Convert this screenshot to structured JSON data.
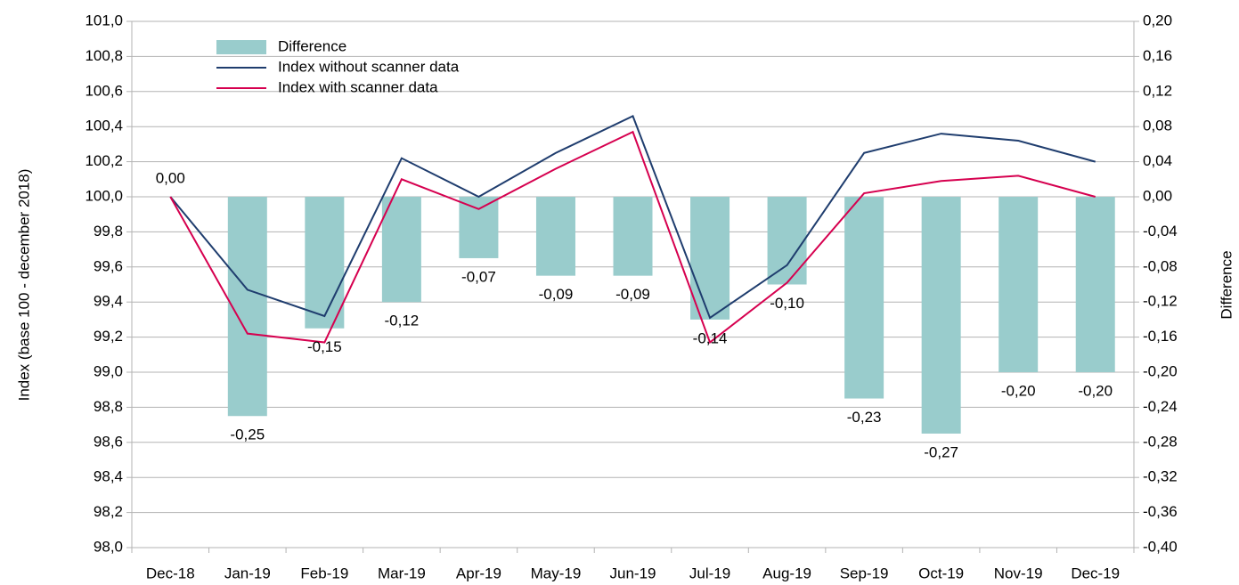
{
  "chart_data": {
    "type": "bar_line",
    "categories": [
      "Dec-18",
      "Jan-19",
      "Feb-19",
      "Mar-19",
      "Apr-19",
      "May-19",
      "Jun-19",
      "Jul-19",
      "Aug-19",
      "Sep-19",
      "Oct-19",
      "Nov-19",
      "Dec-19"
    ],
    "ylabel": "Index (base 100 - december 2018)",
    "y2label": "Difference",
    "ylim": [
      98.0,
      101.0
    ],
    "yticks": [
      {
        "value": 98.0,
        "label": "98,0"
      },
      {
        "value": 98.2,
        "label": "98,2"
      },
      {
        "value": 98.4,
        "label": "98,4"
      },
      {
        "value": 98.6,
        "label": "98,6"
      },
      {
        "value": 98.8,
        "label": "98,8"
      },
      {
        "value": 99.0,
        "label": "99,0"
      },
      {
        "value": 99.2,
        "label": "99,2"
      },
      {
        "value": 99.4,
        "label": "99,4"
      },
      {
        "value": 99.6,
        "label": "99,6"
      },
      {
        "value": 99.8,
        "label": "99,8"
      },
      {
        "value": 100.0,
        "label": "100,0"
      },
      {
        "value": 100.2,
        "label": "100,2"
      },
      {
        "value": 100.4,
        "label": "100,4"
      },
      {
        "value": 100.6,
        "label": "100,6"
      },
      {
        "value": 100.8,
        "label": "100,8"
      },
      {
        "value": 101.0,
        "label": "101,0"
      }
    ],
    "y2lim": [
      -0.4,
      0.2
    ],
    "y2ticks": [
      {
        "value": -0.4,
        "label": "-0,40"
      },
      {
        "value": -0.36,
        "label": "-0,36"
      },
      {
        "value": -0.32,
        "label": "-0,32"
      },
      {
        "value": -0.28,
        "label": "-0,28"
      },
      {
        "value": -0.24,
        "label": "-0,24"
      },
      {
        "value": -0.2,
        "label": "-0,20"
      },
      {
        "value": -0.16,
        "label": "-0,16"
      },
      {
        "value": -0.12,
        "label": "-0,12"
      },
      {
        "value": -0.08,
        "label": "-0,08"
      },
      {
        "value": -0.04,
        "label": "-0,04"
      },
      {
        "value": 0,
        "label": "0,00"
      },
      {
        "value": 0.04,
        "label": "0,04"
      },
      {
        "value": 0.08,
        "label": "0,08"
      },
      {
        "value": 0.12,
        "label": "0,12"
      },
      {
        "value": 0.16,
        "label": "0,16"
      },
      {
        "value": 0.2,
        "label": "0,20"
      }
    ],
    "grid": true,
    "legend": "top-left",
    "series": [
      {
        "name": "Difference",
        "type": "bar",
        "axis": "y2",
        "color": "#99cccc",
        "values": [
          0,
          -0.25,
          -0.15,
          -0.12,
          -0.07,
          -0.09,
          -0.09,
          -0.14,
          -0.1,
          -0.23,
          -0.27,
          -0.2,
          -0.2
        ],
        "value_labels": [
          "0,00",
          "-0,25",
          "-0,15",
          "-0,12",
          "-0,07",
          "-0,09",
          "-0,09",
          "-0,14",
          "-0,10",
          "-0,23",
          "-0,27",
          "-0,20",
          "-0,20"
        ]
      },
      {
        "name": "Index without scanner data",
        "type": "line",
        "color": "#1f3d6e",
        "values": [
          100.0,
          99.47,
          99.32,
          100.22,
          100.0,
          100.25,
          100.46,
          99.31,
          99.61,
          100.25,
          100.36,
          100.32,
          100.2
        ]
      },
      {
        "name": "Index with scanner data",
        "type": "line",
        "color": "#d6004f",
        "values": [
          100.0,
          99.22,
          99.17,
          100.1,
          99.93,
          100.16,
          100.37,
          99.17,
          99.51,
          100.02,
          100.09,
          100.12,
          100.0
        ]
      }
    ]
  }
}
